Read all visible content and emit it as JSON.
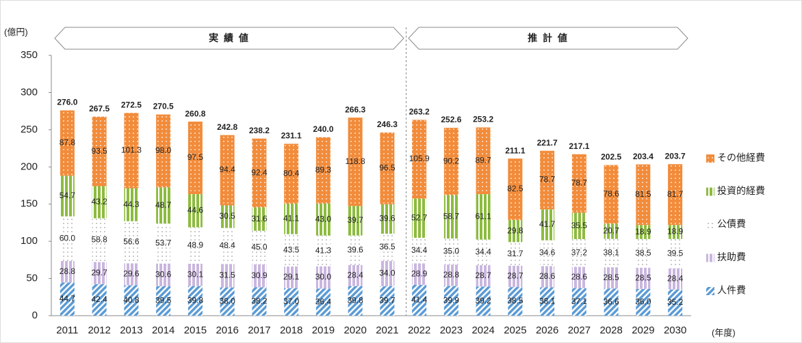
{
  "chart_data": {
    "type": "stacked_bar",
    "y_unit": "(億円)",
    "x_unit": "(年度)",
    "annotations": [
      "実 績 値",
      "推 計 値"
    ],
    "categories": [
      "2011",
      "2012",
      "2013",
      "2014",
      "2015",
      "2016",
      "2017",
      "2018",
      "2019",
      "2020",
      "2021",
      "2022",
      "2023",
      "2024",
      "2025",
      "2026",
      "2027",
      "2028",
      "2029",
      "2030"
    ],
    "ylim": [
      0,
      350
    ],
    "yticks": [
      0,
      50,
      100,
      150,
      200,
      250,
      300,
      350
    ],
    "legend": "right",
    "series": [
      {
        "name": "人件費",
        "color": "#5b9bd5",
        "values": [
          44.7,
          42.4,
          40.8,
          39.5,
          39.8,
          38.0,
          38.2,
          37.0,
          36.4,
          39.8,
          39.7,
          41.4,
          39.9,
          39.2,
          38.5,
          38.1,
          37.1,
          36.6,
          36.0,
          35.2
        ],
        "value_labels": [
          "44.7",
          "42.4",
          "40.8",
          "39.5",
          "39.8",
          "38.0",
          "38.2",
          "37.0",
          "36.4",
          "39.8",
          "39.7",
          "41.4",
          "39.9",
          "39.2",
          "38.5",
          "38.1",
          "37.1",
          "36.6",
          "36.0",
          "35.2"
        ]
      },
      {
        "name": "扶助費",
        "color": "#c9b6de",
        "values": [
          28.8,
          29.7,
          29.6,
          30.6,
          30.1,
          31.5,
          30.9,
          29.1,
          30.0,
          28.4,
          34.0,
          28.9,
          28.8,
          28.7,
          28.7,
          28.6,
          28.6,
          28.5,
          28.5,
          28.4
        ],
        "value_labels": [
          "28.8",
          "29.7",
          "29.6",
          "30.6",
          "30.1",
          "31.5",
          "30.9",
          "29.1",
          "30.0",
          "28.4",
          "34.0",
          "28.9",
          "28.8",
          "28.7",
          "28.7",
          "28.6",
          "28.6",
          "28.5",
          "28.5",
          "28.4"
        ]
      },
      {
        "name": "公債費",
        "color": "#ffffff",
        "values": [
          60.0,
          58.8,
          56.6,
          53.7,
          48.9,
          48.4,
          45.0,
          43.5,
          41.3,
          39.6,
          36.5,
          34.4,
          35.0,
          34.4,
          31.7,
          34.6,
          37.2,
          38.1,
          38.5,
          39.5
        ],
        "value_labels": [
          "60.0",
          "58.8",
          "56.6",
          "53.7",
          "48.9",
          "48.4",
          "45.0",
          "43.5",
          "41.3",
          "39.6",
          "36.5",
          "34.4",
          "35.0",
          "34.4",
          "31.7",
          "34.6",
          "37.2",
          "38.1",
          "38.5",
          "39.5"
        ]
      },
      {
        "name": "投資的経費",
        "color": "#8dbb3f",
        "values": [
          54.7,
          43.2,
          44.3,
          48.7,
          44.6,
          30.5,
          31.6,
          41.1,
          43.0,
          39.7,
          39.6,
          52.7,
          58.7,
          61.1,
          29.8,
          41.7,
          35.5,
          20.7,
          18.9,
          18.9
        ],
        "value_labels": [
          "54.7",
          "43.2",
          "44.3",
          "48.7",
          "44.6",
          "30.5",
          "31.6",
          "41.1",
          "43.0",
          "39.7",
          "39.6",
          "52.7",
          "58.7",
          "61.1",
          "29.8",
          "41.7",
          "35.5",
          "20.7",
          "18.9",
          "18.9"
        ]
      },
      {
        "name": "その他経費",
        "color": "#f28c3b",
        "values": [
          87.8,
          93.5,
          101.3,
          98.0,
          97.5,
          94.4,
          92.4,
          80.4,
          89.3,
          118.8,
          96.5,
          105.9,
          90.2,
          89.7,
          82.5,
          78.7,
          78.7,
          78.6,
          81.5,
          81.7
        ],
        "value_labels": [
          "87.8",
          "93.5",
          "101.3",
          "98.0",
          "97.5",
          "94.4",
          "92.4",
          "80.4",
          "89.3",
          "118.8",
          "96.5",
          "105.9",
          "90.2",
          "89.7",
          "82.5",
          "78.7",
          "78.7",
          "78.6",
          "81.5",
          "81.7"
        ]
      }
    ],
    "totals": {
      "values": [
        276.0,
        267.5,
        272.5,
        270.5,
        260.8,
        242.8,
        238.2,
        231.1,
        240.0,
        266.3,
        246.3,
        263.2,
        252.6,
        253.2,
        211.1,
        221.7,
        217.1,
        202.5,
        203.4,
        203.7
      ],
      "value_labels": [
        "276.0",
        "267.5",
        "272.5",
        "270.5",
        "260.8",
        "242.8",
        "238.2",
        "231.1",
        "240.0",
        "266.3",
        "246.3",
        "263.2",
        "252.6",
        "253.2",
        "211.1",
        "221.7",
        "217.1",
        "202.5",
        "203.4",
        "203.7"
      ]
    }
  }
}
